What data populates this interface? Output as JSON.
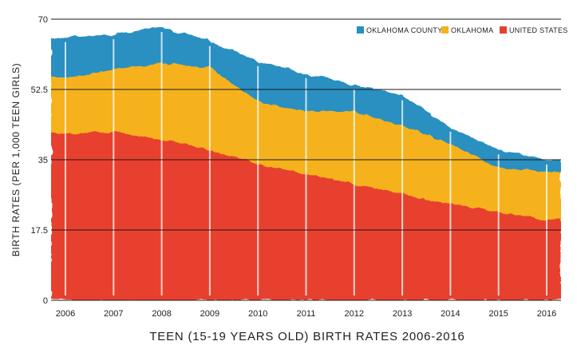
{
  "chart_data": {
    "type": "area",
    "title": "TEEN (15-19 YEARS OLD) BIRTH RATES 2006-2016",
    "xlabel": "",
    "ylabel": "BIRTH RATES (PER 1,000 TEEN GIRLS)",
    "x": [
      2006,
      2007,
      2008,
      2009,
      2010,
      2011,
      2012,
      2013,
      2014,
      2015,
      2016
    ],
    "x_tick_labels": [
      "2006",
      "2007",
      "2008",
      "2009",
      "2010",
      "2011",
      "2012",
      "2013",
      "2014",
      "2015",
      "2016"
    ],
    "y_ticks": [
      0,
      17.5,
      35,
      52.5,
      70
    ],
    "y_tick_labels": [
      "0",
      "17.5",
      "35",
      "52.5",
      "70"
    ],
    "ylim": [
      0,
      70
    ],
    "grid": "horizontal",
    "legend_position": "top-right",
    "series": [
      {
        "name": "OKLAHOMA COUNTY",
        "color": "#2a8fc1",
        "values": [
          65.5,
          66.2,
          68.0,
          64.5,
          59.5,
          56.5,
          53.8,
          51.0,
          43.2,
          37.5,
          35.0
        ]
      },
      {
        "name": "OKLAHOMA",
        "color": "#f5b21f",
        "values": [
          55.5,
          57.5,
          59.0,
          58.0,
          49.5,
          47.0,
          47.0,
          43.5,
          39.0,
          33.0,
          32.0
        ]
      },
      {
        "name": "UNITED STATES",
        "color": "#e8402f",
        "values": [
          41.5,
          42.0,
          40.0,
          37.5,
          34.0,
          31.5,
          29.0,
          26.5,
          24.0,
          22.0,
          20.0
        ]
      }
    ]
  }
}
